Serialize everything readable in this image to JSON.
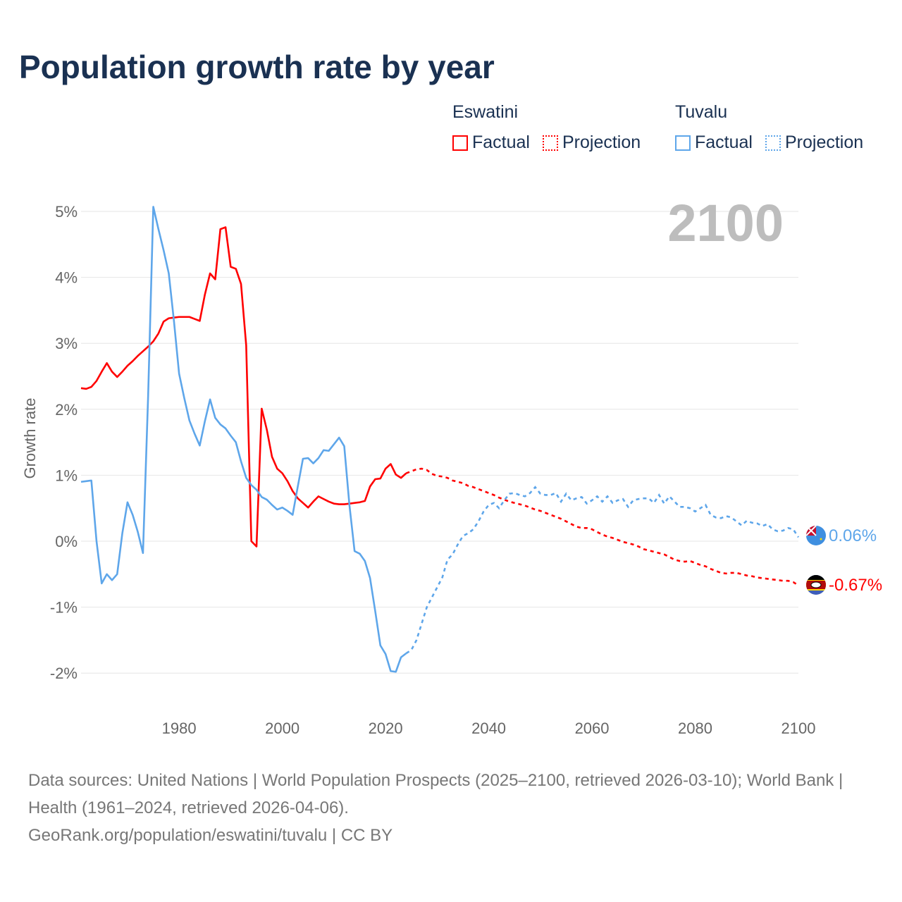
{
  "title": "Population growth rate by year",
  "legend": {
    "groups": [
      {
        "name": "Eswatini",
        "factual": "Factual",
        "projection": "Projection",
        "color": "#ff0000"
      },
      {
        "name": "Tuvalu",
        "factual": "Factual",
        "projection": "Projection",
        "color": "#5ea6ea"
      }
    ]
  },
  "chart_data": {
    "type": "line",
    "title": "Population growth rate by year",
    "xlabel": "",
    "ylabel": "Growth rate",
    "xlim": [
      1961,
      2100
    ],
    "ylim": [
      -2.4,
      5.3
    ],
    "x_ticks": [
      1980,
      2000,
      2020,
      2040,
      2060,
      2080,
      2100
    ],
    "x_tick_labels": [
      "1980",
      "2000",
      "2020",
      "2040",
      "2060",
      "2080",
      "2100"
    ],
    "y_ticks": [
      5,
      4,
      3,
      2,
      1,
      0,
      -1,
      -2
    ],
    "y_tick_labels": [
      "5%",
      "4%",
      "3%",
      "2%",
      "1%",
      "0%",
      "-1%",
      "-2%"
    ],
    "grid": true,
    "current_year_label": "2100",
    "series": [
      {
        "name": "Eswatini",
        "color": "#ff0000",
        "factual_start": 1961,
        "factual": [
          2.32,
          2.31,
          2.34,
          2.43,
          2.57,
          2.7,
          2.57,
          2.49,
          2.57,
          2.66,
          2.73,
          2.81,
          2.88,
          2.95,
          3.03,
          3.15,
          3.33,
          3.38,
          3.39,
          3.4,
          3.4,
          3.4,
          3.37,
          3.34,
          3.74,
          4.06,
          3.97,
          4.73,
          4.76,
          4.16,
          4.13,
          3.9,
          2.97,
          0.0,
          -0.08,
          2.01,
          1.69,
          1.28,
          1.1,
          1.03,
          0.91,
          0.76,
          0.65,
          0.58,
          0.51,
          0.6,
          0.68,
          0.64,
          0.6,
          0.57,
          0.56,
          0.56,
          0.57,
          0.58,
          0.59,
          0.61,
          0.83,
          0.94,
          0.95,
          1.1,
          1.17,
          1.01,
          0.96,
          1.03
        ],
        "projection_start": 2025,
        "projection": [
          1.06,
          1.09,
          1.1,
          1.08,
          1.02,
          0.99,
          0.98,
          0.96,
          0.92,
          0.9,
          0.88,
          0.84,
          0.82,
          0.79,
          0.76,
          0.73,
          0.7,
          0.66,
          0.63,
          0.6,
          0.58,
          0.56,
          0.54,
          0.51,
          0.48,
          0.46,
          0.43,
          0.4,
          0.37,
          0.34,
          0.3,
          0.26,
          0.22,
          0.2,
          0.2,
          0.18,
          0.14,
          0.1,
          0.07,
          0.05,
          0.02,
          -0.01,
          -0.03,
          -0.05,
          -0.08,
          -0.12,
          -0.14,
          -0.16,
          -0.18,
          -0.2,
          -0.24,
          -0.28,
          -0.3,
          -0.31,
          -0.3,
          -0.33,
          -0.36,
          -0.38,
          -0.42,
          -0.45,
          -0.48,
          -0.49,
          -0.48,
          -0.48,
          -0.5,
          -0.52,
          -0.53,
          -0.55,
          -0.56,
          -0.57,
          -0.58,
          -0.59,
          -0.6,
          -0.6,
          -0.62,
          -0.67
        ],
        "end_label": "-0.67%"
      },
      {
        "name": "Tuvalu",
        "color": "#5ea6ea",
        "factual_start": 1961,
        "factual": [
          0.9,
          0.91,
          0.92,
          0.0,
          -0.64,
          -0.5,
          -0.59,
          -0.5,
          0.12,
          0.59,
          0.4,
          0.14,
          -0.18,
          2.2,
          5.07,
          4.73,
          4.41,
          4.06,
          3.34,
          2.54,
          2.17,
          1.83,
          1.63,
          1.45,
          1.82,
          2.15,
          1.87,
          1.77,
          1.71,
          1.6,
          1.5,
          1.21,
          0.96,
          0.85,
          0.78,
          0.67,
          0.63,
          0.55,
          0.48,
          0.51,
          0.46,
          0.4,
          0.83,
          1.25,
          1.26,
          1.18,
          1.26,
          1.38,
          1.37,
          1.47,
          1.57,
          1.44,
          0.55,
          -0.15,
          -0.19,
          -0.3,
          -0.56,
          -1.06,
          -1.58,
          -1.71,
          -1.97,
          -1.98,
          -1.76,
          -1.7
        ],
        "projection_start": 2025,
        "projection": [
          -1.65,
          -1.5,
          -1.25,
          -1.0,
          -0.85,
          -0.7,
          -0.55,
          -0.28,
          -0.2,
          -0.05,
          0.08,
          0.12,
          0.18,
          0.3,
          0.45,
          0.55,
          0.58,
          0.5,
          0.62,
          0.72,
          0.73,
          0.7,
          0.68,
          0.73,
          0.82,
          0.72,
          0.7,
          0.7,
          0.73,
          0.6,
          0.72,
          0.62,
          0.65,
          0.67,
          0.57,
          0.62,
          0.68,
          0.6,
          0.68,
          0.58,
          0.62,
          0.64,
          0.52,
          0.62,
          0.64,
          0.65,
          0.65,
          0.58,
          0.7,
          0.57,
          0.68,
          0.6,
          0.52,
          0.52,
          0.5,
          0.45,
          0.5,
          0.55,
          0.4,
          0.36,
          0.35,
          0.38,
          0.36,
          0.3,
          0.24,
          0.31,
          0.28,
          0.27,
          0.23,
          0.26,
          0.18,
          0.15,
          0.16,
          0.2,
          0.18,
          0.06
        ],
        "end_label": "0.06%"
      }
    ]
  },
  "footer": {
    "sources": "Data sources: United Nations | World Population Prospects (2025–2100, retrieved 2026-03-10); World Bank | Health (1961–2024, retrieved 2026-04-06).",
    "credit": "GeoRank.org/population/eswatini/tuvalu | CC BY"
  }
}
